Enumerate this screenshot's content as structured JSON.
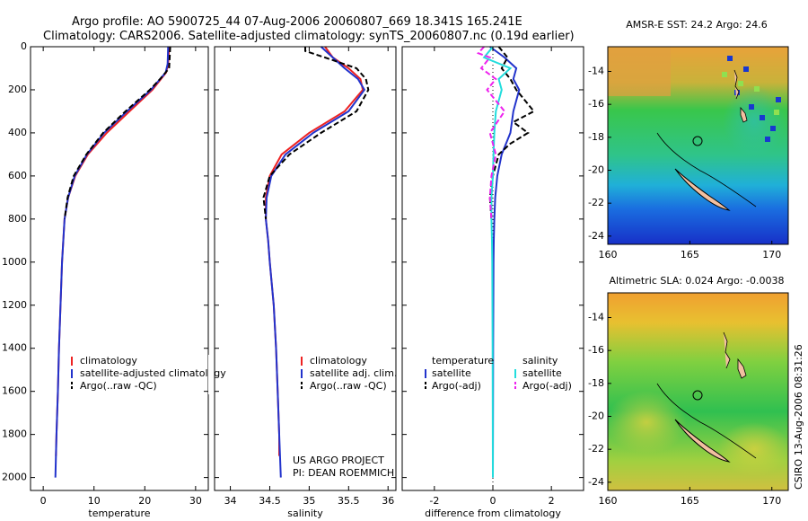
{
  "header": {
    "line1": "Argo profile: AO 5900725_44 07-Aug-2006 20060807_669 18.341S 165.241E",
    "line2": "Climatology: CARS2006. Satellite-adjusted climatology: synTS_20060807.nc (0.19d earlier)"
  },
  "credits": {
    "project": "US ARGO PROJECT",
    "pi": "PI: DEAN ROEMMICH",
    "stamp": "CSIRO 13-Aug-2006 08:31:26"
  },
  "colors": {
    "climatology": "#ee2222",
    "satellite": "#2233cc",
    "argo": "#000000",
    "satellite_salinity": "#22dddd",
    "argo_salinity": "#ee22ee"
  },
  "chart_data": [
    {
      "type": "line",
      "id": "temperature",
      "xlabel": "temperature",
      "xlim": [
        -2.5,
        32.5
      ],
      "ylim": [
        0,
        2060
      ],
      "y_reversed": true,
      "xticks": [
        0,
        10,
        20,
        30
      ],
      "yticks": [
        0,
        200,
        400,
        600,
        800,
        1000,
        1200,
        1400,
        1600,
        1800,
        2000
      ],
      "legend": {
        "position": "lower-right",
        "entries": [
          "climatology",
          "satellite-adjusted climatology",
          "Argo(..raw -QC)"
        ]
      },
      "series": [
        {
          "name": "climatology",
          "color_key": "climatology",
          "dash": "",
          "y": [
            0,
            80,
            120,
            200,
            300,
            400,
            500,
            600,
            700,
            800,
            1000,
            1200,
            1400,
            1600,
            1800,
            1900
          ],
          "x": [
            24.8,
            24.6,
            24.2,
            21.5,
            17.0,
            12.5,
            8.8,
            6.3,
            4.9,
            4.2,
            3.7,
            3.4,
            3.1,
            2.9,
            2.6,
            2.5
          ]
        },
        {
          "name": "satellite-adjusted climatology",
          "color_key": "satellite",
          "dash": "",
          "y": [
            0,
            80,
            120,
            200,
            300,
            400,
            500,
            600,
            700,
            800,
            1000,
            1200,
            1400,
            1600,
            1800,
            2000
          ],
          "x": [
            24.6,
            24.5,
            24.1,
            21.2,
            16.5,
            12.0,
            8.6,
            6.2,
            4.9,
            4.2,
            3.7,
            3.4,
            3.1,
            2.9,
            2.6,
            2.4
          ]
        },
        {
          "name": "Argo(..raw -QC)",
          "color_key": "argo",
          "dash": "6,3",
          "y": [
            0,
            100,
            150,
            200,
            300,
            400,
            500,
            600,
            700,
            800
          ],
          "x": [
            25.0,
            24.8,
            23.0,
            21.0,
            16.2,
            11.8,
            8.5,
            6.0,
            4.8,
            4.2
          ]
        }
      ]
    },
    {
      "type": "line",
      "id": "salinity",
      "xlabel": "salinity",
      "xlim": [
        33.8,
        36.1
      ],
      "ylim": [
        0,
        2060
      ],
      "y_reversed": true,
      "xticks": [
        34,
        34.5,
        35,
        35.5,
        36
      ],
      "legend": {
        "position": "lower-right",
        "entries": [
          "climatology",
          "satellite adj. clim.",
          "Argo(..raw -QC)"
        ]
      },
      "series": [
        {
          "name": "climatology",
          "color_key": "climatology",
          "dash": "",
          "y": [
            0,
            50,
            100,
            150,
            200,
            300,
            400,
            500,
            600,
            700,
            800,
            900,
            1000,
            1200,
            1400,
            1600,
            1800,
            1900
          ],
          "x": [
            35.2,
            35.3,
            35.5,
            35.65,
            35.68,
            35.45,
            35.0,
            34.65,
            34.5,
            34.45,
            34.45,
            34.48,
            34.5,
            34.55,
            34.58,
            34.6,
            34.62,
            34.62
          ]
        },
        {
          "name": "satellite adj. clim.",
          "color_key": "satellite",
          "dash": "",
          "y": [
            0,
            50,
            100,
            150,
            200,
            300,
            400,
            500,
            600,
            700,
            800,
            900,
            1000,
            1200,
            1400,
            1600,
            1800,
            2000
          ],
          "x": [
            35.15,
            35.3,
            35.45,
            35.62,
            35.7,
            35.5,
            35.05,
            34.7,
            34.52,
            34.46,
            34.45,
            34.48,
            34.5,
            34.55,
            34.58,
            34.6,
            34.62,
            34.64
          ]
        },
        {
          "name": "Argo(..raw -QC)",
          "color_key": "argo",
          "dash": "6,3",
          "y": [
            0,
            20,
            50,
            100,
            150,
            200,
            300,
            400,
            500,
            600,
            700,
            800
          ],
          "x": [
            34.95,
            34.95,
            35.2,
            35.6,
            35.72,
            35.75,
            35.6,
            35.15,
            34.75,
            34.5,
            34.42,
            34.45
          ]
        }
      ]
    },
    {
      "type": "line",
      "id": "difference",
      "xlabel": "difference from climatology",
      "xlim": [
        -3.1,
        3.1
      ],
      "ylim": [
        0,
        2060
      ],
      "y_reversed": true,
      "xticks": [
        -2,
        0,
        2
      ],
      "legend": {
        "position": "lower-center",
        "groups": [
          {
            "title": "temperature",
            "entries": [
              "satellite",
              "Argo(-adj)"
            ]
          },
          {
            "title": "salinity",
            "entries": [
              "satellite",
              "Argo(-adj)"
            ]
          }
        ]
      },
      "series": [
        {
          "name": "temperature satellite",
          "color_key": "satellite",
          "dash": "",
          "y": [
            0,
            50,
            100,
            150,
            200,
            300,
            400,
            500,
            600,
            700,
            800,
            900,
            1000,
            1400,
            2000
          ],
          "x": [
            -0.1,
            0.4,
            0.8,
            0.7,
            0.9,
            0.7,
            0.6,
            0.3,
            0.15,
            0.08,
            0.05,
            0.03,
            0.02,
            0.01,
            0.0
          ]
        },
        {
          "name": "temperature Argo(-adj)",
          "color_key": "argo",
          "dash": "6,3",
          "y": [
            0,
            50,
            100,
            150,
            200,
            300,
            350,
            400,
            450,
            500,
            600,
            700,
            800
          ],
          "x": [
            0.2,
            0.5,
            0.3,
            0.6,
            0.8,
            1.4,
            0.7,
            1.2,
            0.6,
            0.2,
            0.0,
            -0.1,
            -0.05
          ]
        },
        {
          "name": "salinity satellite",
          "color_key": "satellite_salinity",
          "dash": "",
          "y": [
            0,
            50,
            100,
            150,
            200,
            300,
            400,
            500,
            600,
            700,
            800,
            900,
            1000,
            1400,
            2000
          ],
          "x": [
            0.0,
            -0.3,
            0.6,
            0.2,
            0.3,
            0.1,
            0.05,
            0.02,
            0.0,
            -0.05,
            -0.05,
            -0.03,
            -0.02,
            -0.01,
            0.0
          ]
        },
        {
          "name": "salinity Argo(-adj)",
          "color_key": "argo_salinity",
          "dash": "6,3",
          "y": [
            0,
            30,
            50,
            100,
            150,
            200,
            300,
            400,
            500,
            600,
            700,
            800
          ],
          "x": [
            -0.3,
            -0.5,
            -0.1,
            -0.4,
            0.1,
            -0.2,
            0.4,
            -0.1,
            0.1,
            -0.05,
            -0.1,
            -0.05
          ]
        }
      ]
    },
    {
      "type": "heatmap",
      "id": "sst-map",
      "title": "AMSR-E SST: 24.2 Argo: 24.6",
      "xlim": [
        160,
        171
      ],
      "ylim": [
        -24.5,
        -12.5
      ],
      "xticks": [
        160,
        165,
        170
      ],
      "yticks": [
        -14,
        -16,
        -18,
        -20,
        -22,
        -24
      ],
      "argo_position": {
        "lon": 165.241,
        "lat": -18.341
      }
    },
    {
      "type": "heatmap",
      "id": "sla-map",
      "title": "Altimetric SLA: 0.024 Argo: -0.0038",
      "xlim": [
        160,
        171
      ],
      "ylim": [
        -24.5,
        -12.5
      ],
      "xticks": [
        160,
        165,
        170
      ],
      "yticks": [
        -14,
        -16,
        -18,
        -20,
        -22,
        -24
      ],
      "argo_position": {
        "lon": 165.241,
        "lat": -18.341
      }
    }
  ]
}
